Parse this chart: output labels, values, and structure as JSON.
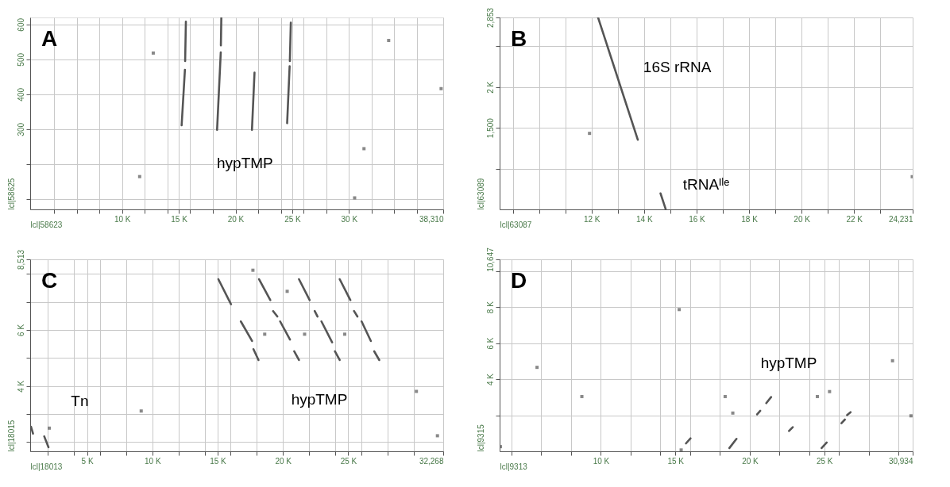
{
  "chart_data": [
    {
      "type": "line",
      "title": "A",
      "grid": true,
      "xlim": [
        1900,
        38310
      ],
      "ylim": [
        70,
        620
      ],
      "xlabel": "lcl|58623",
      "ylabel": "lcl|58625",
      "xticks": [
        {
          "value": 4000,
          "label": null
        },
        {
          "value": 6000,
          "label": null
        },
        {
          "value": 8000,
          "label": null
        },
        {
          "value": 10000,
          "label": "10 K"
        },
        {
          "value": 12000,
          "label": null
        },
        {
          "value": 14000,
          "label": null
        },
        {
          "value": 15000,
          "label": "15 K"
        },
        {
          "value": 16000,
          "label": null
        },
        {
          "value": 18000,
          "label": null
        },
        {
          "value": 20000,
          "label": "20 K"
        },
        {
          "value": 22000,
          "label": null
        },
        {
          "value": 24000,
          "label": null
        },
        {
          "value": 25000,
          "label": "25 K"
        },
        {
          "value": 26000,
          "label": null
        },
        {
          "value": 28000,
          "label": null
        },
        {
          "value": 30000,
          "label": "30 K"
        },
        {
          "value": 32000,
          "label": null
        },
        {
          "value": 34000,
          "label": null
        },
        {
          "value": 36000,
          "label": null
        },
        {
          "value": 38310,
          "label": "38,310"
        }
      ],
      "yticks": [
        {
          "value": 100,
          "label": null
        },
        {
          "value": 200,
          "label": null
        },
        300,
        400,
        500,
        600
      ],
      "annotations": [
        "hypTMP"
      ],
      "series": [
        {
          "type": "line",
          "color": "#555555",
          "x": [
            15250,
            15540,
            null,
            15560,
            15625,
            null,
            18375,
            18700,
            null,
            18710,
            18750,
            null,
            21450,
            21675,
            null,
            24550,
            24770,
            null,
            24790,
            24875
          ],
          "values": [
            311,
            470,
            null,
            495,
            608,
            null,
            298,
            520,
            null,
            540,
            620,
            null,
            298,
            462,
            null,
            317,
            480,
            null,
            495,
            605
          ]
        },
        {
          "type": "scatter",
          "color": "#555555",
          "marker": "square",
          "x": [
            12750,
            33500,
            38125,
            31325,
            11550,
            30500
          ],
          "values": [
            518,
            554,
            416,
            244,
            164,
            103
          ]
        }
      ]
    },
    {
      "type": "line",
      "title": "B",
      "grid": true,
      "xlim": [
        8500,
        24231
      ],
      "ylim": [
        500,
        2853
      ],
      "xlabel": "lcl|63087",
      "ylabel": "lcl|63089",
      "xticks": [
        {
          "value": 9000,
          "label": null
        },
        {
          "value": 10000,
          "label": null
        },
        {
          "value": 11000,
          "label": null
        },
        {
          "value": 12000,
          "label": "12 K"
        },
        {
          "value": 13000,
          "label": null
        },
        {
          "value": 14000,
          "label": "14 K"
        },
        {
          "value": 15000,
          "label": null
        },
        {
          "value": 16000,
          "label": "16 K"
        },
        {
          "value": 17000,
          "label": null
        },
        {
          "value": 18000,
          "label": "18 K"
        },
        {
          "value": 19000,
          "label": null
        },
        {
          "value": 20000,
          "label": "20 K"
        },
        {
          "value": 21000,
          "label": null
        },
        {
          "value": 22000,
          "label": "22 K"
        },
        {
          "value": 23000,
          "label": null
        },
        {
          "value": 24231,
          "label": "24,231"
        }
      ],
      "yticks": [
        {
          "value": 1000,
          "label": null
        },
        {
          "value": 1500,
          "label": "1,500"
        },
        {
          "value": 2000,
          "label": "2 K"
        },
        {
          "value": 2500,
          "label": null
        },
        {
          "value": 2853,
          "label": "2,853"
        }
      ],
      "annotations": [
        "16S rRNA",
        "tRNAᴵˡᵉ"
      ],
      "series": [
        {
          "type": "line",
          "color": "#555555",
          "x": [
            12249,
            13762,
            null,
            14627,
            14822
          ],
          "values": [
            2853,
            1354,
            null,
            697,
            506
          ]
        },
        {
          "type": "scatter",
          "color": "#555555",
          "marker": "square",
          "x": [
            11924,
            24215
          ],
          "values": [
            1432,
            901
          ]
        }
      ]
    },
    {
      "type": "line",
      "title": "C",
      "grid": true,
      "xlim": [
        650,
        32268
      ],
      "ylim": [
        1675,
        8513
      ],
      "xlabel": "lcl|18013",
      "ylabel": "lcl|18015",
      "xticks": [
        {
          "value": 2000,
          "label": null
        },
        {
          "value": 4000,
          "label": null
        },
        {
          "value": 5000,
          "label": "5 K"
        },
        {
          "value": 6000,
          "label": null
        },
        {
          "value": 8000,
          "label": null
        },
        {
          "value": 10000,
          "label": "10 K"
        },
        {
          "value": 12000,
          "label": null
        },
        {
          "value": 14000,
          "label": null
        },
        {
          "value": 15000,
          "label": "15 K"
        },
        {
          "value": 16000,
          "label": null
        },
        {
          "value": 18000,
          "label": null
        },
        {
          "value": 20000,
          "label": "20 K"
        },
        {
          "value": 22000,
          "label": null
        },
        {
          "value": 24000,
          "label": null
        },
        {
          "value": 25000,
          "label": "25 K"
        },
        {
          "value": 26000,
          "label": null
        },
        {
          "value": 28000,
          "label": null
        },
        {
          "value": 30000,
          "label": null
        },
        {
          "value": 32268,
          "label": "32,268"
        }
      ],
      "yticks": [
        {
          "value": 2000,
          "label": null
        },
        {
          "value": 3000,
          "label": null
        },
        {
          "value": 4000,
          "label": "4 K"
        },
        {
          "value": 5000,
          "label": null
        },
        {
          "value": 6000,
          "label": "6 K"
        },
        {
          "value": 7000,
          "label": null
        },
        {
          "value": 8000,
          "label": null
        },
        {
          "value": 8513,
          "label": "8,513"
        }
      ],
      "annotations": [
        "hypTMP",
        "Tn"
      ],
      "series": [
        {
          "type": "line",
          "color": "#555555",
          "x": [
            15055,
            16023,
            null,
            16775,
            17635,
            null,
            17742,
            18130,
            null,
            18172,
            19032,
            null,
            19247,
            19570,
            null,
            19785,
            20538,
            null,
            20860,
            21226,
            null,
            21226,
            22043,
            null,
            22430,
            22645,
            null,
            22946,
            23763,
            null,
            23978,
            24343,
            null,
            24343,
            25160,
            null,
            25440,
            25698,
            null,
            26020,
            26730,
            null,
            26988,
            27375,
            null,
            715,
            865,
            null,
            1725,
            2048
          ],
          "values": [
            7806,
            6914,
            null,
            6302,
            5604,
            null,
            5313,
            4925,
            null,
            7806,
            7059,
            null,
            6671,
            6477,
            null,
            6302,
            5653,
            null,
            5236,
            4925,
            null,
            7806,
            7059,
            null,
            6671,
            6477,
            null,
            6302,
            5556,
            null,
            5236,
            4925,
            null,
            7806,
            7059,
            null,
            6671,
            6477,
            null,
            6302,
            5604,
            null,
            5236,
            4925,
            null,
            2549,
            2306,
            null,
            2209,
            1821
          ]
        },
        {
          "type": "scatter",
          "color": "#555555",
          "marker": "square",
          "x": [
            17700,
            20323,
            18603,
            21656,
            24730,
            9148,
            30213,
            31825,
            2113
          ],
          "values": [
            8126,
            7374,
            5847,
            5847,
            5847,
            3111,
            3810,
            2229,
            2500
          ]
        }
      ]
    },
    {
      "type": "line",
      "title": "D",
      "grid": true,
      "xlim": [
        3200,
        30934
      ],
      "ylim": [
        0,
        10647
      ],
      "xlabel": "lcl|9313",
      "ylabel": "lcl|9315",
      "xticks": [
        {
          "value": 4000,
          "label": null
        },
        {
          "value": 6000,
          "label": null
        },
        {
          "value": 8000,
          "label": null
        },
        {
          "value": 10000,
          "label": "10 K"
        },
        {
          "value": 12000,
          "label": null
        },
        {
          "value": 14000,
          "label": null
        },
        {
          "value": 15000,
          "label": "15 K"
        },
        {
          "value": 16000,
          "label": null
        },
        {
          "value": 18000,
          "label": null
        },
        {
          "value": 20000,
          "label": "20 K"
        },
        {
          "value": 22000,
          "label": null
        },
        {
          "value": 24000,
          "label": null
        },
        {
          "value": 25000,
          "label": "25 K"
        },
        {
          "value": 26000,
          "label": null
        },
        {
          "value": 28000,
          "label": null
        },
        {
          "value": 30000,
          "label": null
        },
        {
          "value": 30934,
          "label": "30,934"
        }
      ],
      "yticks": [
        {
          "value": 2000,
          "label": null
        },
        {
          "value": 4000,
          "label": "4 K"
        },
        {
          "value": 6000,
          "label": "6 K"
        },
        {
          "value": 8000,
          "label": "8 K"
        },
        {
          "value": 10000,
          "label": null
        },
        {
          "value": 10647,
          "label": "10,647"
        }
      ],
      "annotations": [
        "hypTMP"
      ],
      "series": [
        {
          "type": "line",
          "color": "#555555",
          "x": [
            15714,
            16019,
            null,
            18628,
            19105,
            null,
            20490,
            20700,
            null,
            21105,
            21429,
            null,
            22630,
            22880,
            null,
            24820,
            25163,
            null,
            26150,
            26380,
            null,
            26534,
            26763
          ],
          "values": [
            440,
            720,
            null,
            180,
            690,
            null,
            2050,
            2250,
            null,
            2670,
            3010,
            null,
            1130,
            1340,
            null,
            180,
            490,
            null,
            1560,
            1760,
            null,
            2010,
            2170
          ]
        },
        {
          "type": "scatter",
          "color": "#555555",
          "marker": "square",
          "x": [
            15257,
            5713,
            8722,
            18343,
            18857,
            24534,
            25353,
            29582,
            30820,
            15390,
            3255
          ],
          "values": [
            7863,
            4656,
            3037,
            3037,
            2121,
            3037,
            3312,
            5023,
            1968,
            75,
            259
          ]
        }
      ]
    }
  ]
}
